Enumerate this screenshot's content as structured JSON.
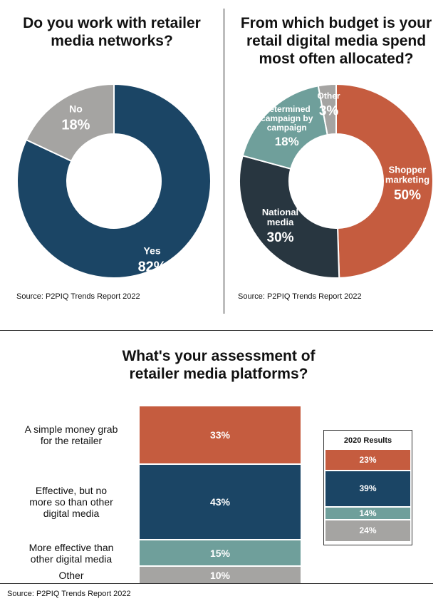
{
  "colors": {
    "yes": "#1b4565",
    "no": "#a5a4a2",
    "shopper": "#c55c3f",
    "national": "#283640",
    "campaign": "#6f9f9b",
    "other": "#a5a4a2"
  },
  "chart_data": [
    {
      "type": "pie",
      "title_lines": [
        "Do you work with retailer",
        "media networks?"
      ],
      "categories": [
        "Yes",
        "No"
      ],
      "values": [
        82,
        18
      ],
      "labels": [
        [
          "Yes"
        ],
        [
          "No"
        ]
      ],
      "value_labels": [
        "82%",
        "18%"
      ],
      "source": "Source: P2PIQ Trends Report 2022"
    },
    {
      "type": "pie",
      "title_lines": [
        "From which budget is your",
        "retail digital media spend",
        "most often allocated?"
      ],
      "categories": [
        "Shopper marketing",
        "National media",
        "Determined campaign by campaign",
        "Other"
      ],
      "values": [
        50,
        30,
        18,
        3
      ],
      "labels": [
        [
          "Shopper",
          "marketing"
        ],
        [
          "National",
          "media"
        ],
        [
          "Determined",
          "campaign by",
          "campaign"
        ],
        [
          "Other"
        ]
      ],
      "value_labels": [
        "50%",
        "30%",
        "18%",
        "3%"
      ],
      "source": "Source: P2PIQ Trends Report 2022"
    },
    {
      "type": "bar",
      "stacked": true,
      "title_lines": [
        "What's your assessment of",
        "retailer media platforms?"
      ],
      "categories": [
        [
          "A simple money grab",
          "for the retailer"
        ],
        [
          "Effective, but no",
          "more so than other",
          "digital media"
        ],
        [
          "More effective than",
          "other digital media"
        ],
        [
          "Other"
        ]
      ],
      "series": [
        {
          "values": [
            33,
            43,
            15,
            10
          ],
          "labels": [
            "33%",
            "43%",
            "15%",
            "10%"
          ]
        }
      ],
      "comparison": {
        "title": "2020 Results",
        "values": [
          23,
          39,
          14,
          24
        ],
        "labels": [
          "23%",
          "39%",
          "14%",
          "24%"
        ]
      },
      "source": "Source: P2PIQ Trends Report 2022"
    }
  ]
}
